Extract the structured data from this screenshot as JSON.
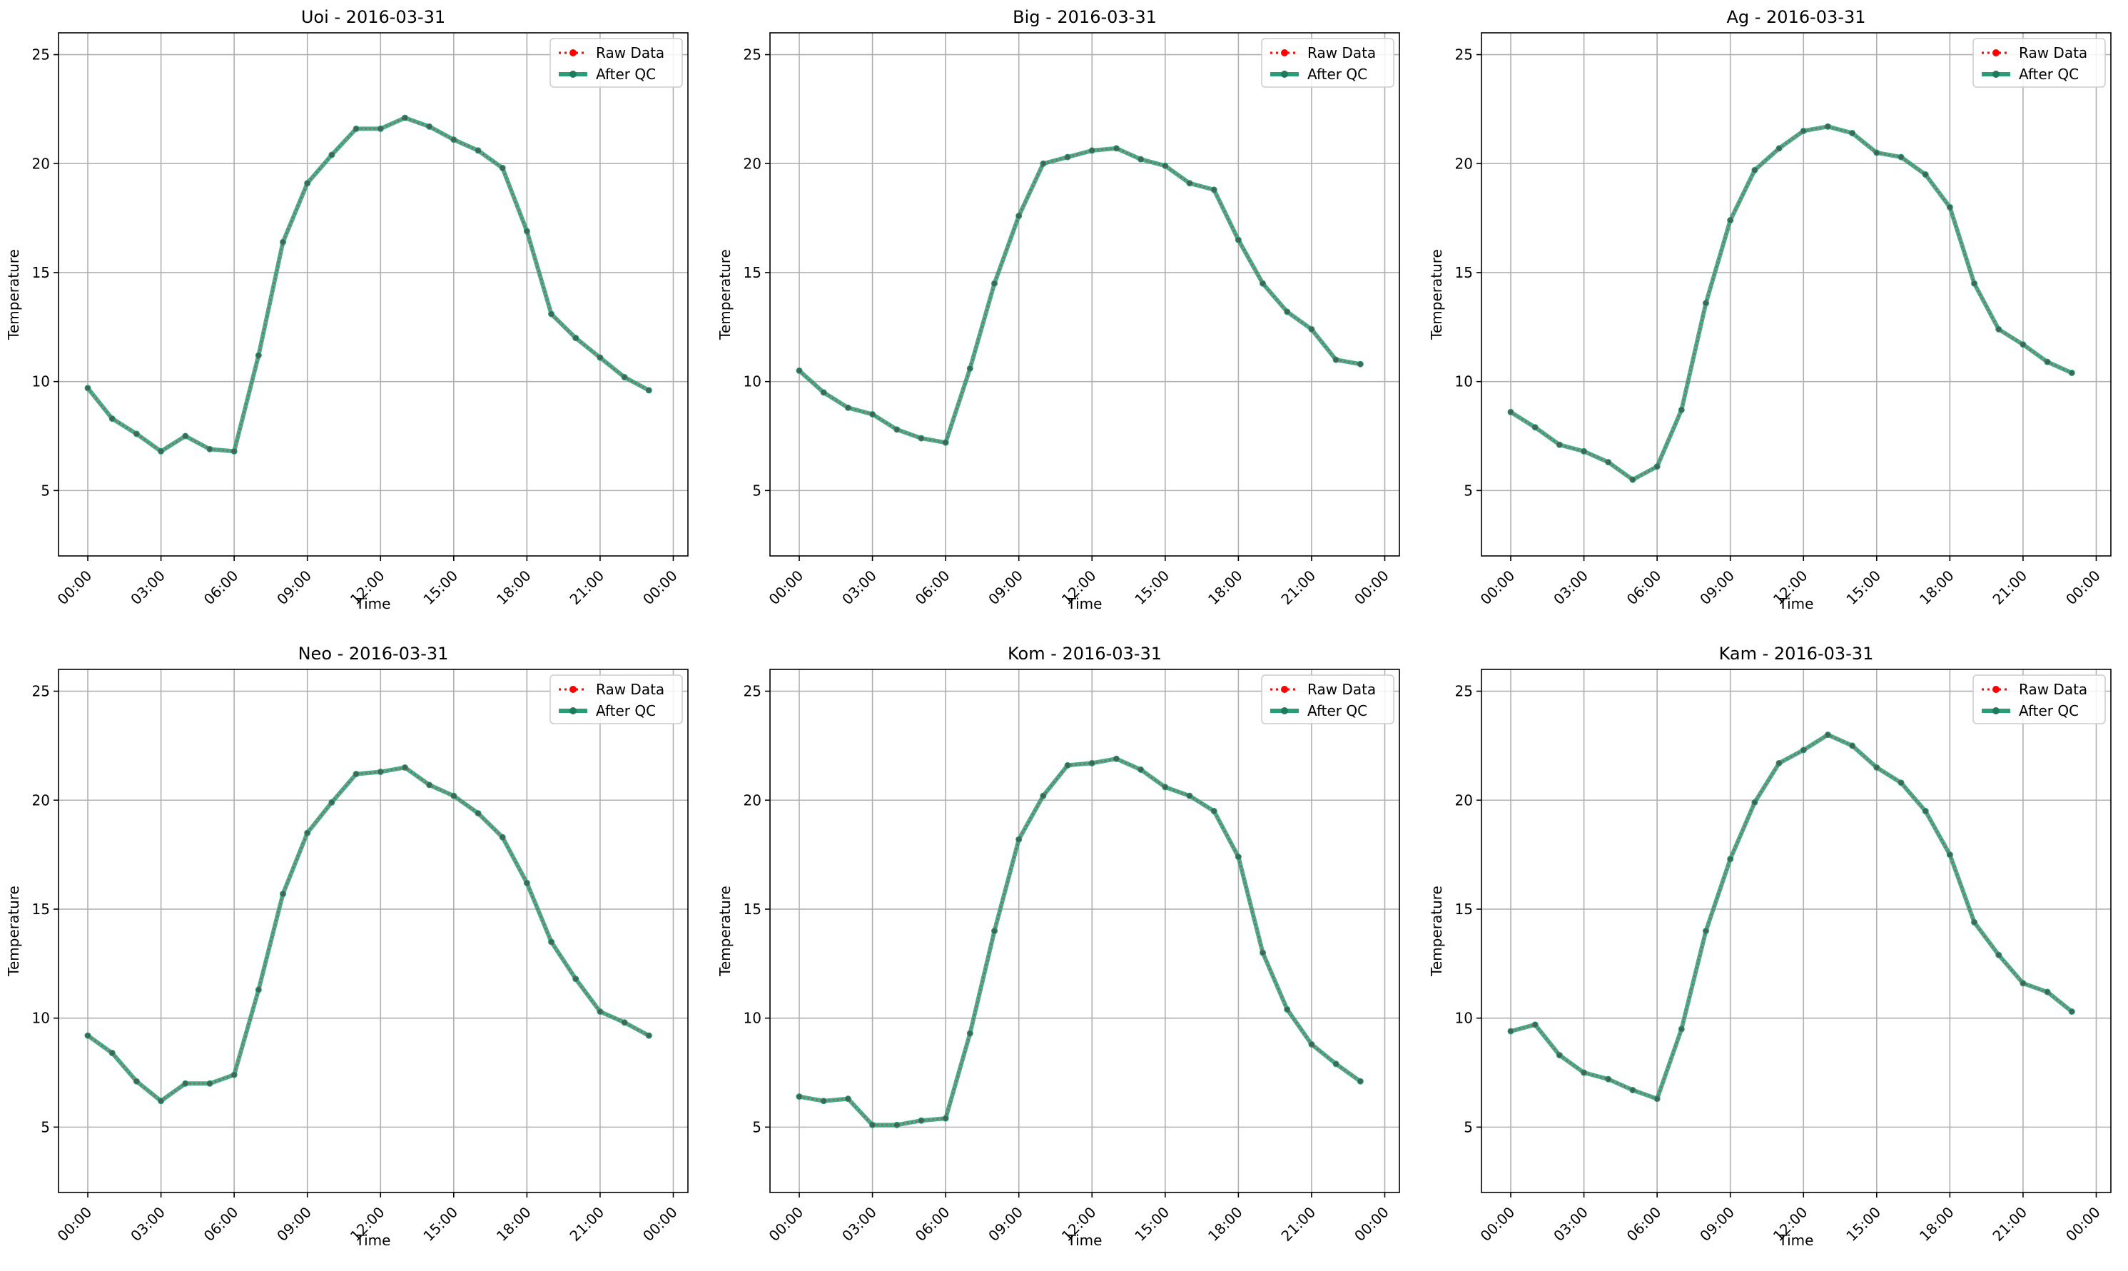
{
  "chart_data": [
    {
      "type": "line",
      "title": "Uoi - 2016-03-31",
      "xlabel": "Time",
      "ylabel": "Temperature",
      "x": [
        "00:00",
        "01:00",
        "02:00",
        "03:00",
        "04:00",
        "05:00",
        "06:00",
        "07:00",
        "08:00",
        "09:00",
        "10:00",
        "11:00",
        "12:00",
        "13:00",
        "14:00",
        "15:00",
        "16:00",
        "17:00",
        "18:00",
        "19:00",
        "20:00",
        "21:00",
        "22:00",
        "23:00"
      ],
      "series": [
        {
          "name": "Raw Data",
          "values": [
            9.7,
            8.3,
            7.6,
            6.8,
            7.5,
            6.9,
            6.8,
            11.2,
            16.4,
            19.1,
            20.4,
            21.6,
            21.6,
            22.1,
            21.7,
            21.1,
            20.6,
            19.8,
            16.9,
            13.1,
            12.0,
            11.1,
            10.2,
            9.6
          ]
        },
        {
          "name": "After QC",
          "values": [
            9.7,
            8.3,
            7.6,
            6.8,
            7.5,
            6.9,
            6.8,
            11.2,
            16.4,
            19.1,
            20.4,
            21.6,
            21.6,
            22.1,
            21.7,
            21.1,
            20.6,
            19.8,
            16.9,
            13.1,
            12.0,
            11.1,
            10.2,
            9.6
          ]
        }
      ],
      "ylim": [
        2,
        26
      ],
      "yticks": [
        5,
        10,
        15,
        20,
        25
      ],
      "xticks": [
        "00:00",
        "03:00",
        "06:00",
        "09:00",
        "12:00",
        "15:00",
        "18:00",
        "21:00",
        "00:00"
      ],
      "grid": true,
      "legend": "top-right"
    },
    {
      "type": "line",
      "title": "Big - 2016-03-31",
      "xlabel": "Time",
      "ylabel": "Temperature",
      "x": [
        "00:00",
        "01:00",
        "02:00",
        "03:00",
        "04:00",
        "05:00",
        "06:00",
        "07:00",
        "08:00",
        "09:00",
        "10:00",
        "11:00",
        "12:00",
        "13:00",
        "14:00",
        "15:00",
        "16:00",
        "17:00",
        "18:00",
        "19:00",
        "20:00",
        "21:00",
        "22:00",
        "23:00"
      ],
      "series": [
        {
          "name": "Raw Data",
          "values": [
            10.5,
            9.5,
            8.8,
            8.5,
            7.8,
            7.4,
            7.2,
            10.6,
            14.5,
            17.6,
            20.0,
            20.3,
            20.6,
            20.7,
            20.2,
            19.9,
            19.1,
            18.8,
            16.5,
            14.5,
            13.2,
            12.4,
            11.0,
            10.8
          ]
        },
        {
          "name": "After QC",
          "values": [
            10.5,
            9.5,
            8.8,
            8.5,
            7.8,
            7.4,
            7.2,
            10.6,
            14.5,
            17.6,
            20.0,
            20.3,
            20.6,
            20.7,
            20.2,
            19.9,
            19.1,
            18.8,
            16.5,
            14.5,
            13.2,
            12.4,
            11.0,
            10.8
          ]
        }
      ],
      "ylim": [
        2,
        26
      ],
      "yticks": [
        5,
        10,
        15,
        20,
        25
      ],
      "xticks": [
        "00:00",
        "03:00",
        "06:00",
        "09:00",
        "12:00",
        "15:00",
        "18:00",
        "21:00",
        "00:00"
      ],
      "grid": true,
      "legend": "top-right"
    },
    {
      "type": "line",
      "title": "Ag - 2016-03-31",
      "xlabel": "Time",
      "ylabel": "Temperature",
      "x": [
        "00:00",
        "01:00",
        "02:00",
        "03:00",
        "04:00",
        "05:00",
        "06:00",
        "07:00",
        "08:00",
        "09:00",
        "10:00",
        "11:00",
        "12:00",
        "13:00",
        "14:00",
        "15:00",
        "16:00",
        "17:00",
        "18:00",
        "19:00",
        "20:00",
        "21:00",
        "22:00",
        "23:00"
      ],
      "series": [
        {
          "name": "Raw Data",
          "values": [
            8.6,
            7.9,
            7.1,
            6.8,
            6.3,
            5.5,
            6.1,
            8.7,
            13.6,
            17.4,
            19.7,
            20.7,
            21.5,
            21.7,
            21.4,
            20.5,
            20.3,
            19.5,
            18.0,
            14.5,
            12.4,
            11.7,
            10.9,
            10.4
          ]
        },
        {
          "name": "After QC",
          "values": [
            8.6,
            7.9,
            7.1,
            6.8,
            6.3,
            5.5,
            6.1,
            8.7,
            13.6,
            17.4,
            19.7,
            20.7,
            21.5,
            21.7,
            21.4,
            20.5,
            20.3,
            19.5,
            18.0,
            14.5,
            12.4,
            11.7,
            10.9,
            10.4
          ]
        }
      ],
      "ylim": [
        2,
        26
      ],
      "yticks": [
        5,
        10,
        15,
        20,
        25
      ],
      "xticks": [
        "00:00",
        "03:00",
        "06:00",
        "09:00",
        "12:00",
        "15:00",
        "18:00",
        "21:00",
        "00:00"
      ],
      "grid": true,
      "legend": "top-right"
    },
    {
      "type": "line",
      "title": "Neo - 2016-03-31",
      "xlabel": "Time",
      "ylabel": "Temperature",
      "x": [
        "00:00",
        "01:00",
        "02:00",
        "03:00",
        "04:00",
        "05:00",
        "06:00",
        "07:00",
        "08:00",
        "09:00",
        "10:00",
        "11:00",
        "12:00",
        "13:00",
        "14:00",
        "15:00",
        "16:00",
        "17:00",
        "18:00",
        "19:00",
        "20:00",
        "21:00",
        "22:00",
        "23:00"
      ],
      "series": [
        {
          "name": "Raw Data",
          "values": [
            9.2,
            8.4,
            7.1,
            6.2,
            7.0,
            7.0,
            7.4,
            11.3,
            15.7,
            18.5,
            19.9,
            21.2,
            21.3,
            21.5,
            20.7,
            20.2,
            19.4,
            18.3,
            16.2,
            13.5,
            11.8,
            10.3,
            9.8,
            9.2
          ]
        },
        {
          "name": "After QC",
          "values": [
            9.2,
            8.4,
            7.1,
            6.2,
            7.0,
            7.0,
            7.4,
            11.3,
            15.7,
            18.5,
            19.9,
            21.2,
            21.3,
            21.5,
            20.7,
            20.2,
            19.4,
            18.3,
            16.2,
            13.5,
            11.8,
            10.3,
            9.8,
            9.2
          ]
        }
      ],
      "ylim": [
        2,
        26
      ],
      "yticks": [
        5,
        10,
        15,
        20,
        25
      ],
      "xticks": [
        "00:00",
        "03:00",
        "06:00",
        "09:00",
        "12:00",
        "15:00",
        "18:00",
        "21:00",
        "00:00"
      ],
      "grid": true,
      "legend": "top-right"
    },
    {
      "type": "line",
      "title": "Kom - 2016-03-31",
      "xlabel": "Time",
      "ylabel": "Temperature",
      "x": [
        "00:00",
        "01:00",
        "02:00",
        "03:00",
        "04:00",
        "05:00",
        "06:00",
        "07:00",
        "08:00",
        "09:00",
        "10:00",
        "11:00",
        "12:00",
        "13:00",
        "14:00",
        "15:00",
        "16:00",
        "17:00",
        "18:00",
        "19:00",
        "20:00",
        "21:00",
        "22:00",
        "23:00"
      ],
      "series": [
        {
          "name": "Raw Data",
          "values": [
            6.4,
            6.2,
            6.3,
            5.1,
            5.1,
            5.3,
            5.4,
            9.3,
            14.0,
            18.2,
            20.2,
            21.6,
            21.7,
            21.9,
            21.4,
            20.6,
            20.2,
            19.5,
            17.4,
            13.0,
            10.4,
            8.8,
            7.9,
            7.1
          ]
        },
        {
          "name": "After QC",
          "values": [
            6.4,
            6.2,
            6.3,
            5.1,
            5.1,
            5.3,
            5.4,
            9.3,
            14.0,
            18.2,
            20.2,
            21.6,
            21.7,
            21.9,
            21.4,
            20.6,
            20.2,
            19.5,
            17.4,
            13.0,
            10.4,
            8.8,
            7.9,
            7.1
          ]
        }
      ],
      "ylim": [
        2,
        26
      ],
      "yticks": [
        5,
        10,
        15,
        20,
        25
      ],
      "xticks": [
        "00:00",
        "03:00",
        "06:00",
        "09:00",
        "12:00",
        "15:00",
        "18:00",
        "21:00",
        "00:00"
      ],
      "grid": true,
      "legend": "top-right"
    },
    {
      "type": "line",
      "title": "Kam - 2016-03-31",
      "xlabel": "Time",
      "ylabel": "Temperature",
      "x": [
        "00:00",
        "01:00",
        "02:00",
        "03:00",
        "04:00",
        "05:00",
        "06:00",
        "07:00",
        "08:00",
        "09:00",
        "10:00",
        "11:00",
        "12:00",
        "13:00",
        "14:00",
        "15:00",
        "16:00",
        "17:00",
        "18:00",
        "19:00",
        "20:00",
        "21:00",
        "22:00",
        "23:00"
      ],
      "series": [
        {
          "name": "Raw Data",
          "values": [
            9.4,
            9.7,
            8.3,
            7.5,
            7.2,
            6.7,
            6.3,
            9.5,
            14.0,
            17.3,
            19.9,
            21.7,
            22.3,
            23.0,
            22.5,
            21.5,
            20.8,
            19.5,
            17.5,
            14.4,
            12.9,
            11.6,
            11.2,
            10.3
          ]
        },
        {
          "name": "After QC",
          "values": [
            9.4,
            9.7,
            8.3,
            7.5,
            7.2,
            6.7,
            6.3,
            9.5,
            14.0,
            17.3,
            19.9,
            21.7,
            22.3,
            23.0,
            22.5,
            21.5,
            20.8,
            19.5,
            17.5,
            14.4,
            12.9,
            11.6,
            11.2,
            10.3
          ]
        }
      ],
      "ylim": [
        2,
        26
      ],
      "yticks": [
        5,
        10,
        15,
        20,
        25
      ],
      "xticks": [
        "00:00",
        "03:00",
        "06:00",
        "09:00",
        "12:00",
        "15:00",
        "18:00",
        "21:00",
        "00:00"
      ],
      "grid": true,
      "legend": "top-right"
    }
  ],
  "colors": {
    "raw": "#ff0000",
    "qc": "#2a9d78",
    "grid": "#b0b0b0",
    "axis": "#000000",
    "legend_border": "#cccccc"
  }
}
